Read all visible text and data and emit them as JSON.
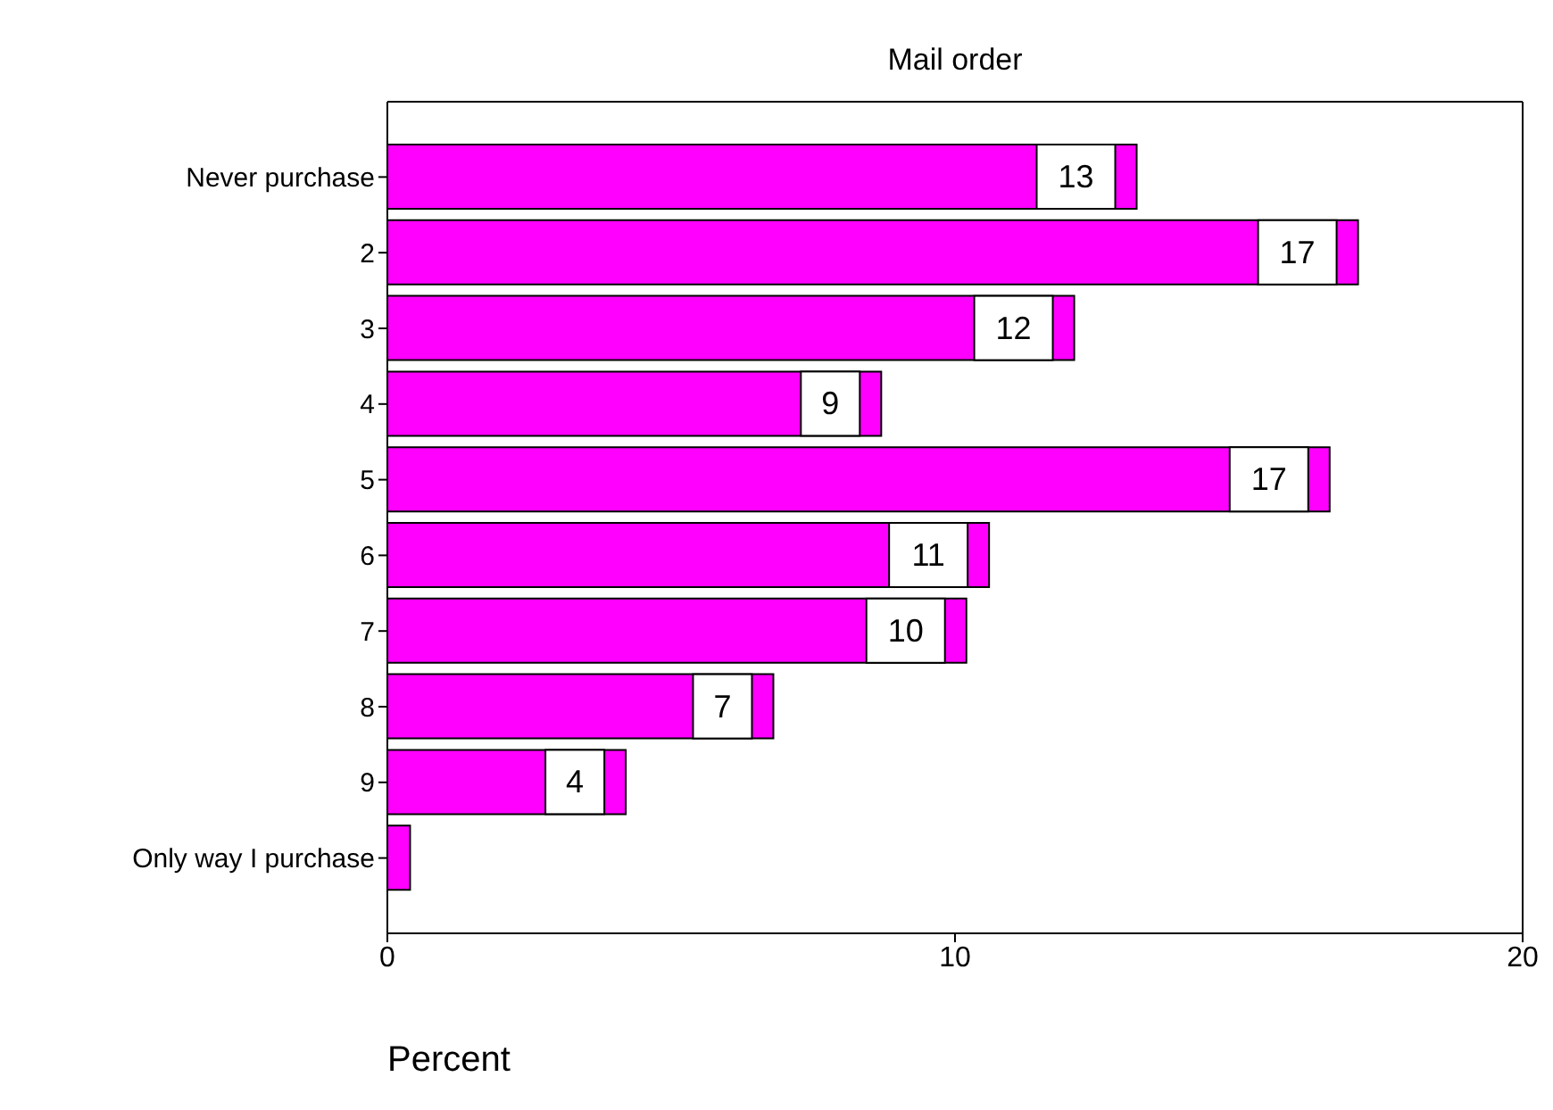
{
  "chart_data": {
    "type": "bar",
    "orientation": "horizontal",
    "title": "Mail order",
    "xlabel": "Percent",
    "categories": [
      "Never purchase",
      "2",
      "3",
      "4",
      "5",
      "6",
      "7",
      "8",
      "9",
      "Only way I purchase"
    ],
    "values": [
      13.2,
      17.1,
      12.1,
      8.7,
      16.6,
      10.6,
      10.2,
      6.8,
      4.2,
      0.4
    ],
    "color": "#ff00ff",
    "value_labels": [
      "13",
      "17",
      "12",
      "9",
      "17",
      "11",
      "10",
      "7",
      "4",
      null
    ],
    "xlim": [
      0,
      20
    ],
    "xticks": [
      0,
      10,
      20
    ]
  }
}
